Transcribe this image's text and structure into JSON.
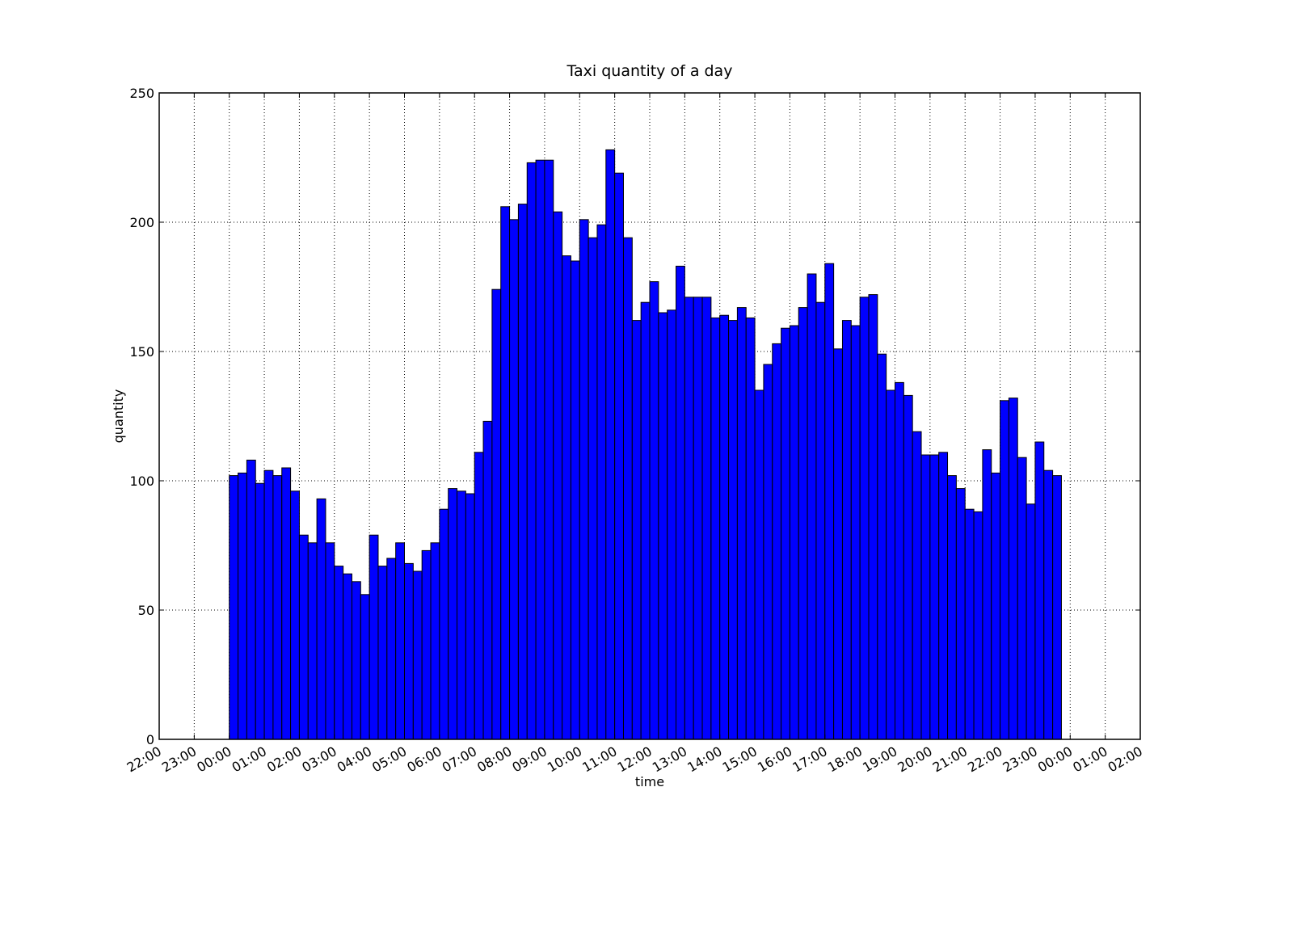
{
  "chart_data": {
    "type": "bar",
    "title": "Taxi quantity of a day",
    "xlabel": "time",
    "ylabel": "quantity",
    "xlim": [
      "22:00",
      "02:00"
    ],
    "ylim": [
      0,
      250
    ],
    "yticks": [
      0,
      50,
      100,
      150,
      200,
      250
    ],
    "xtick_labels": [
      "22:00",
      "23:00",
      "00:00",
      "01:00",
      "02:00",
      "03:00",
      "04:00",
      "05:00",
      "06:00",
      "07:00",
      "08:00",
      "09:00",
      "10:00",
      "11:00",
      "12:00",
      "13:00",
      "14:00",
      "15:00",
      "16:00",
      "17:00",
      "18:00",
      "19:00",
      "20:00",
      "21:00",
      "22:00",
      "23:00",
      "00:00",
      "01:00",
      "02:00"
    ],
    "grid": true,
    "bar_color": "#0000ff",
    "bar_edge_color": "#000000",
    "bin_width_minutes": 15,
    "first_bin_start": "00:00",
    "values": [
      102,
      103,
      108,
      99,
      104,
      102,
      105,
      96,
      79,
      76,
      93,
      76,
      67,
      64,
      61,
      56,
      79,
      67,
      70,
      76,
      68,
      65,
      73,
      76,
      89,
      97,
      96,
      95,
      111,
      123,
      174,
      206,
      201,
      207,
      223,
      224,
      224,
      204,
      187,
      185,
      201,
      194,
      199,
      228,
      219,
      194,
      162,
      169,
      177,
      165,
      166,
      183,
      171,
      171,
      171,
      163,
      164,
      162,
      167,
      163,
      135,
      145,
      153,
      159,
      160,
      167,
      180,
      169,
      184,
      151,
      162,
      160,
      171,
      172,
      149,
      135,
      138,
      133,
      119,
      110,
      110,
      111,
      102,
      97,
      89,
      88,
      112,
      103,
      131,
      132,
      109,
      91,
      115,
      104,
      102
    ]
  }
}
